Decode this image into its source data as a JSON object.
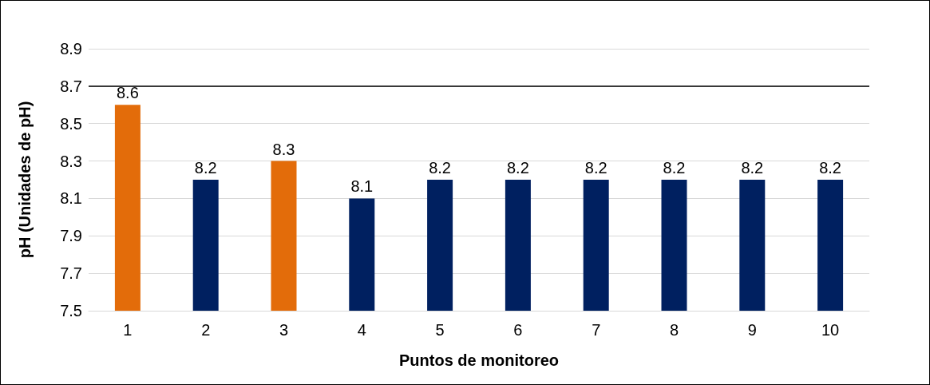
{
  "chart_data": {
    "type": "bar",
    "xlabel": "Puntos de monitoreo",
    "ylabel": "pH (Unidades de pH)",
    "categories": [
      "1",
      "2",
      "3",
      "4",
      "5",
      "6",
      "7",
      "8",
      "9",
      "10"
    ],
    "values": [
      8.6,
      8.2,
      8.3,
      8.1,
      8.2,
      8.2,
      8.2,
      8.2,
      8.2,
      8.2
    ],
    "colors": [
      "#e36c0a",
      "#002060",
      "#e36c0a",
      "#002060",
      "#002060",
      "#002060",
      "#002060",
      "#002060",
      "#002060",
      "#002060"
    ],
    "ylim": [
      7.5,
      8.9
    ],
    "yticks": [
      7.5,
      7.7,
      7.9,
      8.1,
      8.3,
      8.5,
      8.7,
      8.9
    ],
    "grid": "y",
    "data_labels": true,
    "ref_lines": [
      {
        "axis": "y",
        "value": 8.7,
        "color": "#000000"
      }
    ]
  }
}
